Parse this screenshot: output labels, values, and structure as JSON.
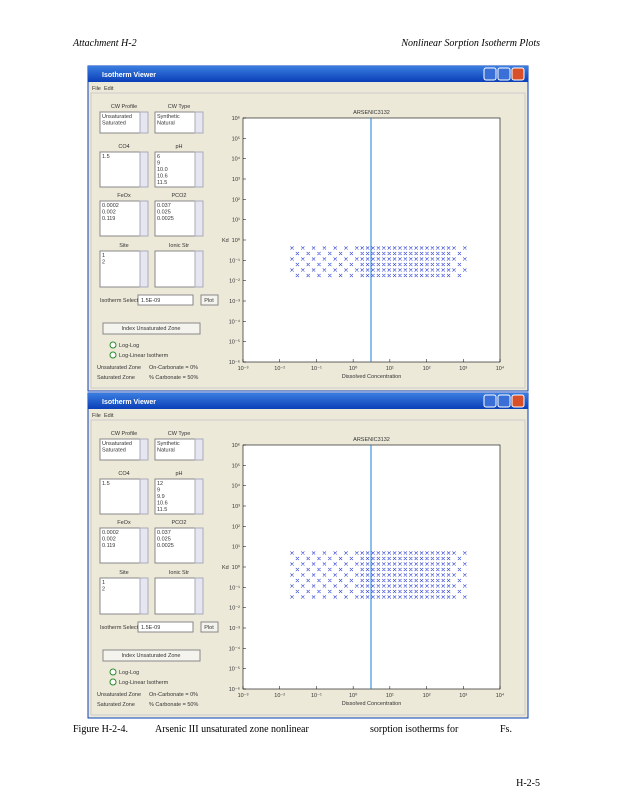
{
  "header": {
    "left": "Attachment    H-2",
    "right": "Nonlinear    Sorption    Isotherm    Plots"
  },
  "windows": [
    {
      "title": "Isotherm Viewer",
      "menu": [
        "File",
        "Edit"
      ],
      "lists": [
        {
          "label": "CW Profile",
          "items": [
            "Unsaturated",
            "Saturated"
          ]
        },
        {
          "label": "CW Type",
          "items": [
            "Synthetic",
            "Natural"
          ]
        },
        {
          "label": "CO4",
          "items": [
            "1.5"
          ]
        },
        {
          "label": "pH",
          "items": [
            "6",
            "9",
            "10.0",
            "10.6",
            "11.5"
          ]
        },
        {
          "label": "FeOx",
          "items": [
            "0.0002",
            "0.002",
            "0.119"
          ]
        },
        {
          "label": "PCO2",
          "items": [
            "0.037",
            "0.025",
            "0.0025"
          ]
        },
        {
          "label": "Site",
          "items": [
            "1",
            "2"
          ]
        },
        {
          "label": "Ionic Str",
          "items": []
        }
      ],
      "select_label": "Isotherm Selection",
      "select_value": "1.5E-09",
      "plot_button": "Plot",
      "index_button": "Index Unsaturated Zone",
      "radios": [
        "Log-Log",
        "Log-Linear Isotherm"
      ],
      "legend": [
        "Unsaturated Zone",
        "On-Carbonate = 0%",
        "Saturated Zone",
        "% Carbonate = 50%"
      ],
      "plot_title": "ARSENIC3132",
      "ylabel": "Kd",
      "xlabel": "Dissolved Concentration",
      "yticks": [
        "10⁶",
        "10⁵",
        "10⁴",
        "10³",
        "10²",
        "10¹",
        "10⁰",
        "10⁻¹",
        "10⁻²",
        "10⁻³",
        "10⁻⁴",
        "10⁻⁵",
        "10⁻⁶"
      ],
      "xticks": [
        "10⁻³",
        "10⁻²",
        "10⁻¹",
        "10⁰",
        "10¹",
        "10²",
        "10³",
        "10⁴"
      ]
    },
    {
      "title": "Isotherm Viewer",
      "menu": [
        "File",
        "Edit"
      ],
      "lists": [
        {
          "label": "CW Profile",
          "items": [
            "Unsaturated",
            "Saturated"
          ]
        },
        {
          "label": "CW Type",
          "items": [
            "Synthetic",
            "Natural"
          ]
        },
        {
          "label": "CO4",
          "items": [
            "1.5"
          ]
        },
        {
          "label": "pH",
          "items": [
            "12",
            "9",
            "9.9",
            "10.6",
            "11.5"
          ]
        },
        {
          "label": "FeOx",
          "items": [
            "0.0002",
            "0.002",
            "0.119"
          ]
        },
        {
          "label": "PCO2",
          "items": [
            "0.037",
            "0.025",
            "0.0025"
          ]
        },
        {
          "label": "Site",
          "items": [
            "1",
            "2"
          ]
        },
        {
          "label": "Ionic Str",
          "items": []
        }
      ],
      "select_label": "Isotherm Selection",
      "select_value": "1.5E-09",
      "plot_button": "Plot",
      "index_button": "Index Unsaturated Zone",
      "radios": [
        "Log-Log",
        "Log-Linear Isotherm"
      ],
      "legend": [
        "Unsaturated Zone",
        "On-Carbonate = 0%",
        "Saturated Zone",
        "% Carbonate = 50%"
      ],
      "plot_title": "ARSENIC3132",
      "ylabel": "Kd",
      "xlabel": "Dissolved Concentration",
      "yticks": [
        "10⁶",
        "10⁵",
        "10⁴",
        "10³",
        "10²",
        "10¹",
        "10⁰",
        "10⁻¹",
        "10⁻²",
        "10⁻³",
        "10⁻⁴",
        "10⁻⁵",
        "10⁻⁶"
      ],
      "xticks": [
        "10⁻³",
        "10⁻²",
        "10⁻¹",
        "10⁰",
        "10¹",
        "10²",
        "10³",
        "10⁴"
      ]
    }
  ],
  "caption": {
    "label": "Figure H-2-4.",
    "part1": "Arsenic III unsaturated zone nonlinear",
    "part2": "sorption isotherms for",
    "part3": "Fs."
  },
  "page_number": "H-2-5"
}
